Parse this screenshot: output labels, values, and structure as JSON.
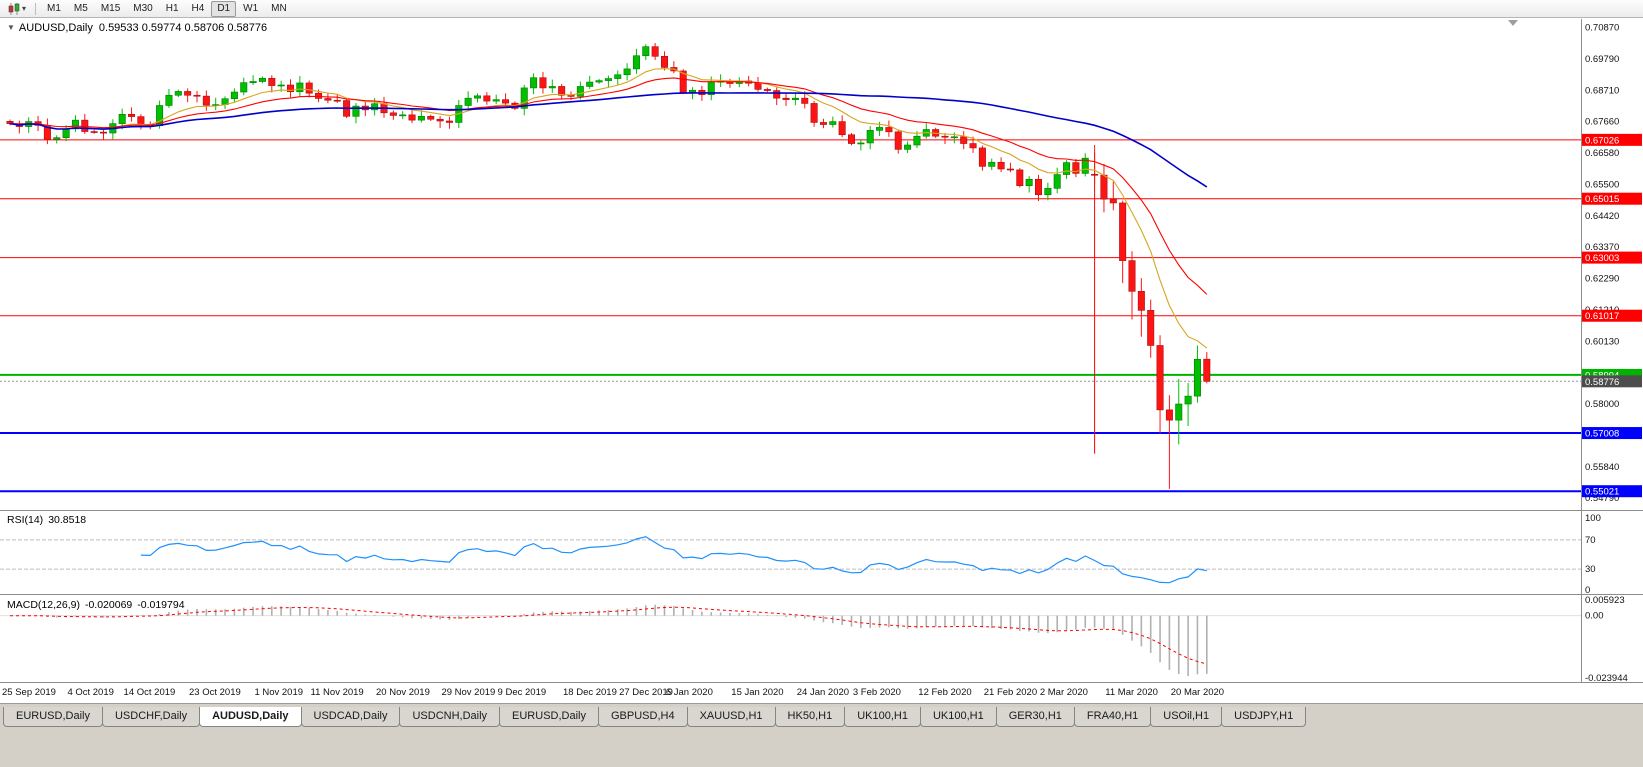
{
  "icons": {
    "chart_dropdown": "▼",
    "dropdown_small": "▾"
  },
  "toolbar": {
    "timeframes": [
      "M1",
      "M5",
      "M15",
      "M30",
      "H1",
      "H4",
      "D1",
      "W1",
      "MN"
    ],
    "active_timeframe": "D1"
  },
  "chart_header": {
    "symbol": "AUDUSD,Daily",
    "ohlc_text": "0.59533 0.59774 0.58706 0.58776"
  },
  "rsi_panel": {
    "label": "RSI(14)",
    "value": "30.8518",
    "levels": [
      "100",
      "70",
      "30",
      "0"
    ]
  },
  "macd_panel": {
    "label": "MACD(12,26,9)",
    "main_value": "-0.020069",
    "signal_value": "-0.019794",
    "scale_labels": [
      "0.005923",
      "0.00",
      "-0.023944"
    ]
  },
  "tabs": [
    "EURUSD,Daily",
    "USDCHF,Daily",
    "AUDUSD,Daily",
    "USDCAD,Daily",
    "USDCNH,Daily",
    "EURUSD,Daily",
    "GBPUSD,H4",
    "XAUUSD,H1",
    "HK50,H1",
    "UK100,H1",
    "UK100,H1",
    "GER30,H1",
    "FRA40,H1",
    "USOil,H1",
    "USDJPY,H1"
  ],
  "active_tab_index": 2,
  "chart_data": {
    "type": "candlestick",
    "title": "AUDUSD,Daily",
    "ylim": [
      0.5455,
      0.7095
    ],
    "colors": {
      "bull": "#00bf00",
      "bull_stroke": "#007a00",
      "bear": "#ff1414",
      "bear_stroke": "#a31212",
      "background": "#ffffff",
      "axis_text": "#111111"
    },
    "y_axis_labels": [
      "0.70870",
      "0.69790",
      "0.68710",
      "0.67660",
      "0.66580",
      "0.65500",
      "0.64420",
      "0.63370",
      "0.62290",
      "0.61210",
      "0.60130",
      "0.59050",
      "0.58000",
      "0.56920",
      "0.55840",
      "0.54790"
    ],
    "x_axis_labels": [
      {
        "label": "25 Sep 2019",
        "candle_index": 0
      },
      {
        "label": "4 Oct 2019",
        "candle_index": 7
      },
      {
        "label": "14 Oct 2019",
        "candle_index": 13
      },
      {
        "label": "23 Oct 2019",
        "candle_index": 20
      },
      {
        "label": "1 Nov 2019",
        "candle_index": 27
      },
      {
        "label": "11 Nov 2019",
        "candle_index": 33
      },
      {
        "label": "20 Nov 2019",
        "candle_index": 40
      },
      {
        "label": "29 Nov 2019",
        "candle_index": 47
      },
      {
        "label": "9 Dec 2019",
        "candle_index": 53
      },
      {
        "label": "18 Dec 2019",
        "candle_index": 60
      },
      {
        "label": "27 Dec 2019",
        "candle_index": 66
      },
      {
        "label": "6 Jan 2020",
        "candle_index": 71
      },
      {
        "label": "15 Jan 2020",
        "candle_index": 78
      },
      {
        "label": "24 Jan 2020",
        "candle_index": 85
      },
      {
        "label": "3 Feb 2020",
        "candle_index": 91
      },
      {
        "label": "12 Feb 2020",
        "candle_index": 98
      },
      {
        "label": "21 Feb 2020",
        "candle_index": 105
      },
      {
        "label": "2 Mar 2020",
        "candle_index": 111
      },
      {
        "label": "11 Mar 2020",
        "candle_index": 118
      },
      {
        "label": "20 Mar 2020",
        "candle_index": 125
      }
    ],
    "horizontal_lines": [
      {
        "label": "0.67026",
        "price": 0.67026,
        "color": "#ff0000",
        "width": 1
      },
      {
        "label": "0.65015",
        "price": 0.65015,
        "color": "#ff0000",
        "width": 1
      },
      {
        "label": "0.63003",
        "price": 0.63003,
        "color": "#ff0000",
        "width": 1
      },
      {
        "label": "0.61017",
        "price": 0.61017,
        "color": "#ff0000",
        "width": 1
      },
      {
        "label": "0.58994",
        "price": 0.58994,
        "color": "#00b300",
        "width": 2
      },
      {
        "label": "0.57008",
        "price": 0.57008,
        "color": "#0000ff",
        "width": 2
      },
      {
        "label": "0.55021",
        "price": 0.55021,
        "color": "#0000ff",
        "width": 2
      }
    ],
    "current_price": {
      "label": "0.58776",
      "price": 0.58776,
      "badge_color": "#4d4d4d",
      "line_color": "#999999"
    },
    "vertical_line": {
      "candle_index": 116,
      "price_from": 0.666,
      "price_to": 0.563,
      "color": "#ff0000"
    },
    "last_candle_ohlc": [
      0.59533,
      0.59774,
      0.58706,
      0.58776
    ],
    "closes": [
      0.6758,
      0.6748,
      0.6765,
      0.6752,
      0.6705,
      0.671,
      0.674,
      0.677,
      0.6731,
      0.6729,
      0.6726,
      0.6758,
      0.679,
      0.6782,
      0.6753,
      0.6751,
      0.682,
      0.6855,
      0.6868,
      0.6855,
      0.6852,
      0.6821,
      0.6823,
      0.6843,
      0.6866,
      0.6898,
      0.6902,
      0.6913,
      0.6888,
      0.689,
      0.6867,
      0.6897,
      0.6862,
      0.6844,
      0.6838,
      0.6837,
      0.6783,
      0.6818,
      0.6805,
      0.6826,
      0.6795,
      0.6786,
      0.6788,
      0.677,
      0.6783,
      0.6773,
      0.6767,
      0.6762,
      0.682,
      0.6845,
      0.6853,
      0.6835,
      0.684,
      0.6828,
      0.681,
      0.688,
      0.6915,
      0.688,
      0.6885,
      0.6855,
      0.6851,
      0.6885,
      0.69,
      0.6905,
      0.6912,
      0.6925,
      0.6945,
      0.699,
      0.7021,
      0.6988,
      0.695,
      0.6938,
      0.6865,
      0.6872,
      0.6857,
      0.69,
      0.6903,
      0.6895,
      0.6904,
      0.6896,
      0.6875,
      0.6871,
      0.6845,
      0.684,
      0.6845,
      0.6827,
      0.6762,
      0.6755,
      0.6765,
      0.672,
      0.669,
      0.6692,
      0.6735,
      0.6745,
      0.673,
      0.667,
      0.6685,
      0.6715,
      0.6738,
      0.6715,
      0.6712,
      0.6713,
      0.669,
      0.6675,
      0.6612,
      0.6626,
      0.6603,
      0.66,
      0.6546,
      0.6568,
      0.6515,
      0.6537,
      0.6584,
      0.6625,
      0.6588,
      0.664,
      0.6582,
      0.65,
      0.6487,
      0.629,
      0.6185,
      0.612,
      0.6,
      0.578,
      0.5745,
      0.58,
      0.5827,
      0.5953,
      0.58776
    ],
    "ohlc_overrides": {
      "116": [
        0.6585,
        0.6685,
        0.655,
        0.6582
      ],
      "117": [
        0.6582,
        0.662,
        0.6455,
        0.65
      ],
      "118": [
        0.65,
        0.656,
        0.6462,
        0.6487
      ],
      "119": [
        0.6487,
        0.6495,
        0.6213,
        0.629
      ],
      "120": [
        0.629,
        0.6322,
        0.6089,
        0.6185
      ],
      "121": [
        0.6185,
        0.623,
        0.603,
        0.612
      ],
      "122": [
        0.612,
        0.6157,
        0.5958,
        0.6
      ],
      "123": [
        0.6,
        0.6035,
        0.57,
        0.578
      ],
      "124": [
        0.578,
        0.583,
        0.551,
        0.5745
      ],
      "125": [
        0.5745,
        0.5885,
        0.5662,
        0.58
      ],
      "126": [
        0.58,
        0.5872,
        0.5725,
        0.5827
      ],
      "127": [
        0.5827,
        0.6,
        0.5805,
        0.5953
      ],
      "128": [
        0.59533,
        0.59774,
        0.58706,
        0.58776
      ]
    },
    "moving_averages": [
      {
        "period": 10,
        "method": "ema",
        "color": "#d9a520"
      },
      {
        "period": 20,
        "method": "ema",
        "color": "#ff0000"
      },
      {
        "period": 50,
        "method": "sma",
        "color": "#0000cc"
      }
    ],
    "rsi": {
      "period": 14,
      "current_value": "30.8518",
      "line_color": "#1e90ff",
      "levels": [
        70,
        30
      ],
      "scale": [
        100,
        0
      ]
    },
    "macd": {
      "fast": 12,
      "slow": 26,
      "signal": 9,
      "main_color": "#b0b0b0",
      "signal_color": "#ff0000",
      "range": [
        -0.023944,
        0.005923
      ]
    }
  }
}
